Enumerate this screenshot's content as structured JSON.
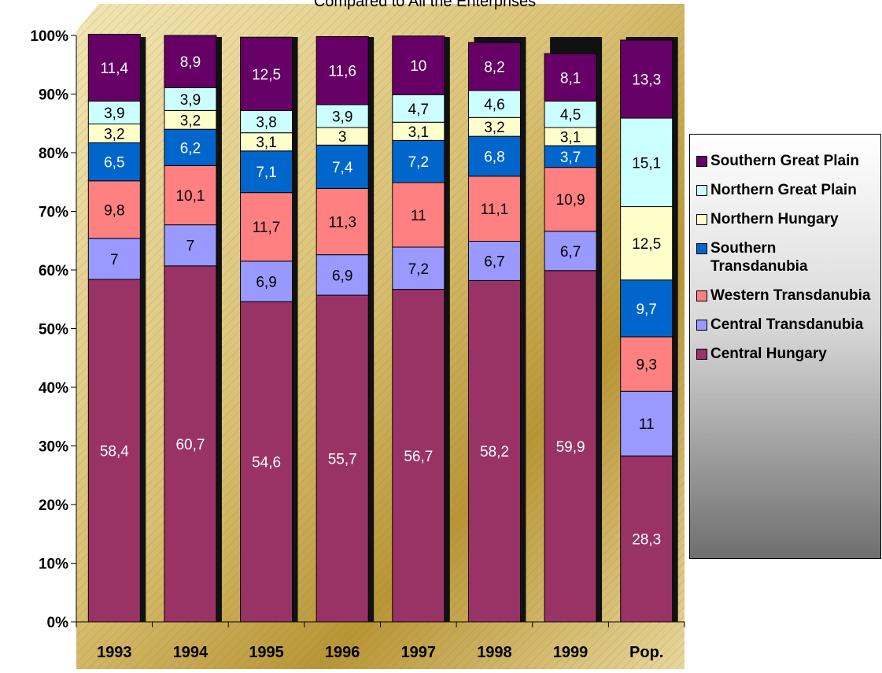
{
  "chart_data": {
    "type": "stacked_bar",
    "title": "Compared to All the Enterprises",
    "categories": [
      "1993",
      "1994",
      "1995",
      "1996",
      "1997",
      "1998",
      "1999",
      "Pop."
    ],
    "ylim": [
      0,
      100
    ],
    "yticks": [
      {
        "value": 0,
        "label": "0%"
      },
      {
        "value": 10,
        "label": "10%"
      },
      {
        "value": 20,
        "label": "20%"
      },
      {
        "value": 30,
        "label": "30%"
      },
      {
        "value": 40,
        "label": "40%"
      },
      {
        "value": 50,
        "label": "50%"
      },
      {
        "value": 60,
        "label": "60%"
      },
      {
        "value": 70,
        "label": "70%"
      },
      {
        "value": 80,
        "label": "80%"
      },
      {
        "value": 90,
        "label": "90%"
      },
      {
        "value": 100,
        "label": "100%"
      }
    ],
    "legend": "right",
    "series": [
      {
        "name": "Central Hungary",
        "color": "#993366",
        "values": [
          58.4,
          60.7,
          54.6,
          55.7,
          56.7,
          58.2,
          59.9,
          28.3
        ],
        "value_labels": [
          "58,4",
          "60,7",
          "54,6",
          "55,7",
          "56,7",
          "58,2",
          "59,9",
          "28,3"
        ]
      },
      {
        "name": "Central Transdanubia",
        "color": "#9999ff",
        "values": [
          7,
          7,
          6.9,
          6.9,
          7.2,
          6.7,
          6.7,
          11
        ],
        "value_labels": [
          "7",
          "7",
          "6,9",
          "6,9",
          "7,2",
          "6,7",
          "6,7",
          "11"
        ]
      },
      {
        "name": "Western Transdanubia",
        "color": "#ff8080",
        "values": [
          9.8,
          10.1,
          11.7,
          11.3,
          11,
          11.1,
          10.9,
          9.3
        ],
        "value_labels": [
          "9,8",
          "10,1",
          "11,7",
          "11,3",
          "11",
          "11,1",
          "10,9",
          "9,3"
        ]
      },
      {
        "name": "Southern Transdanubia",
        "color": "#0066cc",
        "values": [
          6.5,
          6.2,
          7.1,
          7.4,
          7.2,
          6.8,
          3.7,
          9.7
        ],
        "value_labels": [
          "6,5",
          "6,2",
          "7,1",
          "7,4",
          "7,2",
          "6,8",
          "3,7",
          "9,7"
        ]
      },
      {
        "name": "Northern Hungary",
        "color": "#ffffcc",
        "values": [
          3.2,
          3.2,
          3.1,
          3,
          3.1,
          3.2,
          3.1,
          12.5
        ],
        "value_labels": [
          "3,2",
          "3,2",
          "3,1",
          "3",
          "3,1",
          "3,2",
          "3,1",
          "12,5"
        ]
      },
      {
        "name": "Northern Great Plain",
        "color": "#ccffff",
        "values": [
          3.9,
          3.9,
          3.8,
          3.9,
          4.7,
          4.6,
          4.5,
          15.1
        ],
        "value_labels": [
          "3,9",
          "3,9",
          "3,8",
          "3,9",
          "4,7",
          "4,6",
          "4,5",
          "15,1"
        ]
      },
      {
        "name": "Southern Great Plain",
        "color": "#660066",
        "values": [
          11.4,
          8.9,
          12.5,
          11.6,
          10,
          8.2,
          8.1,
          13.3
        ],
        "value_labels": [
          "11,4",
          "8,9",
          "12,5",
          "11,6",
          "10",
          "8,2",
          "8,1",
          "13,3"
        ]
      }
    ]
  }
}
